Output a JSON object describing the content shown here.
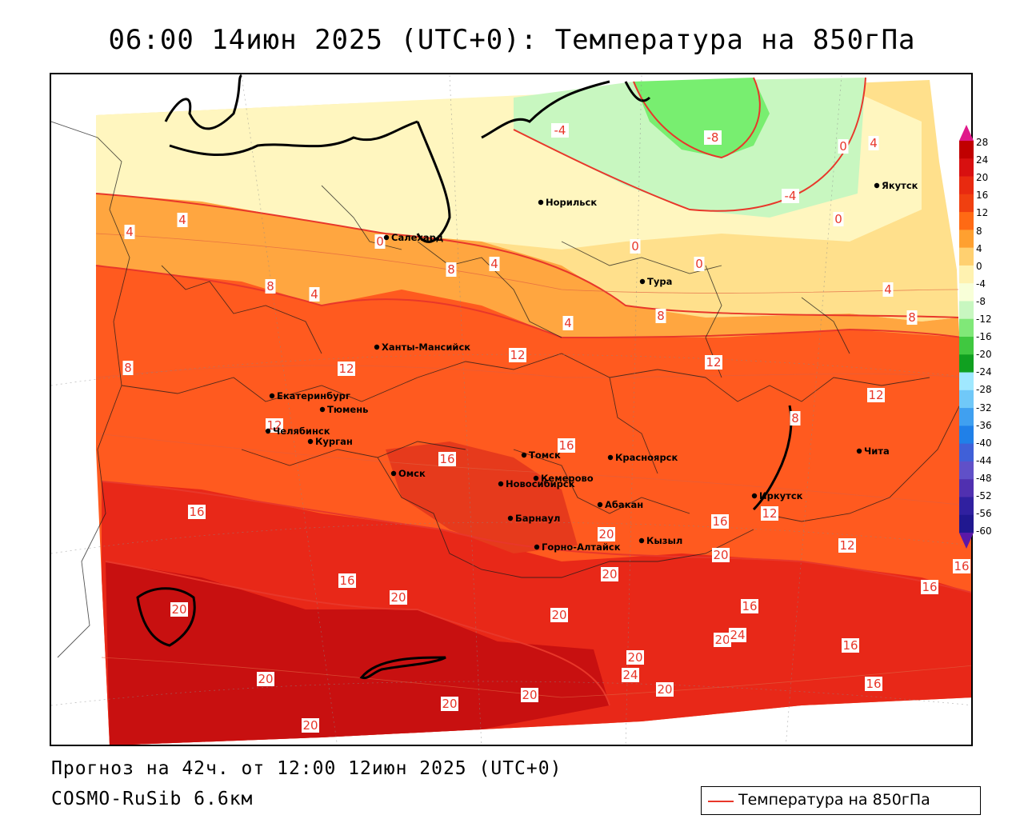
{
  "title": "06:00 14июн 2025 (UTC+0): Температура на 850гПа",
  "footer": {
    "forecast": "Прогноз на 42ч. от 12:00 12июн 2025 (UTC+0)",
    "model": "COSMO-RuSib 6.6км"
  },
  "legend": {
    "label": "Температура на 850гПа",
    "line_color": "#e8372a"
  },
  "colorbar": {
    "ticks": [
      "28",
      "24",
      "20",
      "16",
      "12",
      "8",
      "4",
      "0",
      "-4",
      "-8",
      "-12",
      "-16",
      "-20",
      "-24",
      "-28",
      "-32",
      "-36",
      "-40",
      "-44",
      "-48",
      "-52",
      "-56",
      "-60"
    ]
  },
  "cities": [
    {
      "name": "Якутск"
    },
    {
      "name": "Норильск"
    },
    {
      "name": "Салехард"
    },
    {
      "name": "Тура"
    },
    {
      "name": "Ханты-Мансийск"
    },
    {
      "name": "Екатеринбург"
    },
    {
      "name": "Тюмень"
    },
    {
      "name": "Челябинск"
    },
    {
      "name": "Курган"
    },
    {
      "name": "Омск"
    },
    {
      "name": "Томск"
    },
    {
      "name": "Красноярск"
    },
    {
      "name": "Кемерово"
    },
    {
      "name": "Новосибирск"
    },
    {
      "name": "Абакан"
    },
    {
      "name": "Барнаул"
    },
    {
      "name": "Горно-Алтайск"
    },
    {
      "name": "Кызыл"
    },
    {
      "name": "Иркутск"
    },
    {
      "name": "Чита"
    }
  ],
  "isolines": [
    "-4",
    "-8",
    "0",
    "4",
    "-4",
    "0",
    "4",
    "4",
    "0",
    "0",
    "8",
    "4",
    "8",
    "4",
    "0",
    "4",
    "8",
    "4",
    "8",
    "8",
    "12",
    "12",
    "12",
    "12",
    "12",
    "8",
    "16",
    "16",
    "16",
    "12",
    "12",
    "16",
    "20",
    "20",
    "20",
    "16",
    "20",
    "16",
    "20",
    "16",
    "16",
    "20",
    "20",
    "24",
    "20",
    "24",
    "20",
    "20",
    "20",
    "20",
    "20",
    "16",
    "16"
  ]
}
